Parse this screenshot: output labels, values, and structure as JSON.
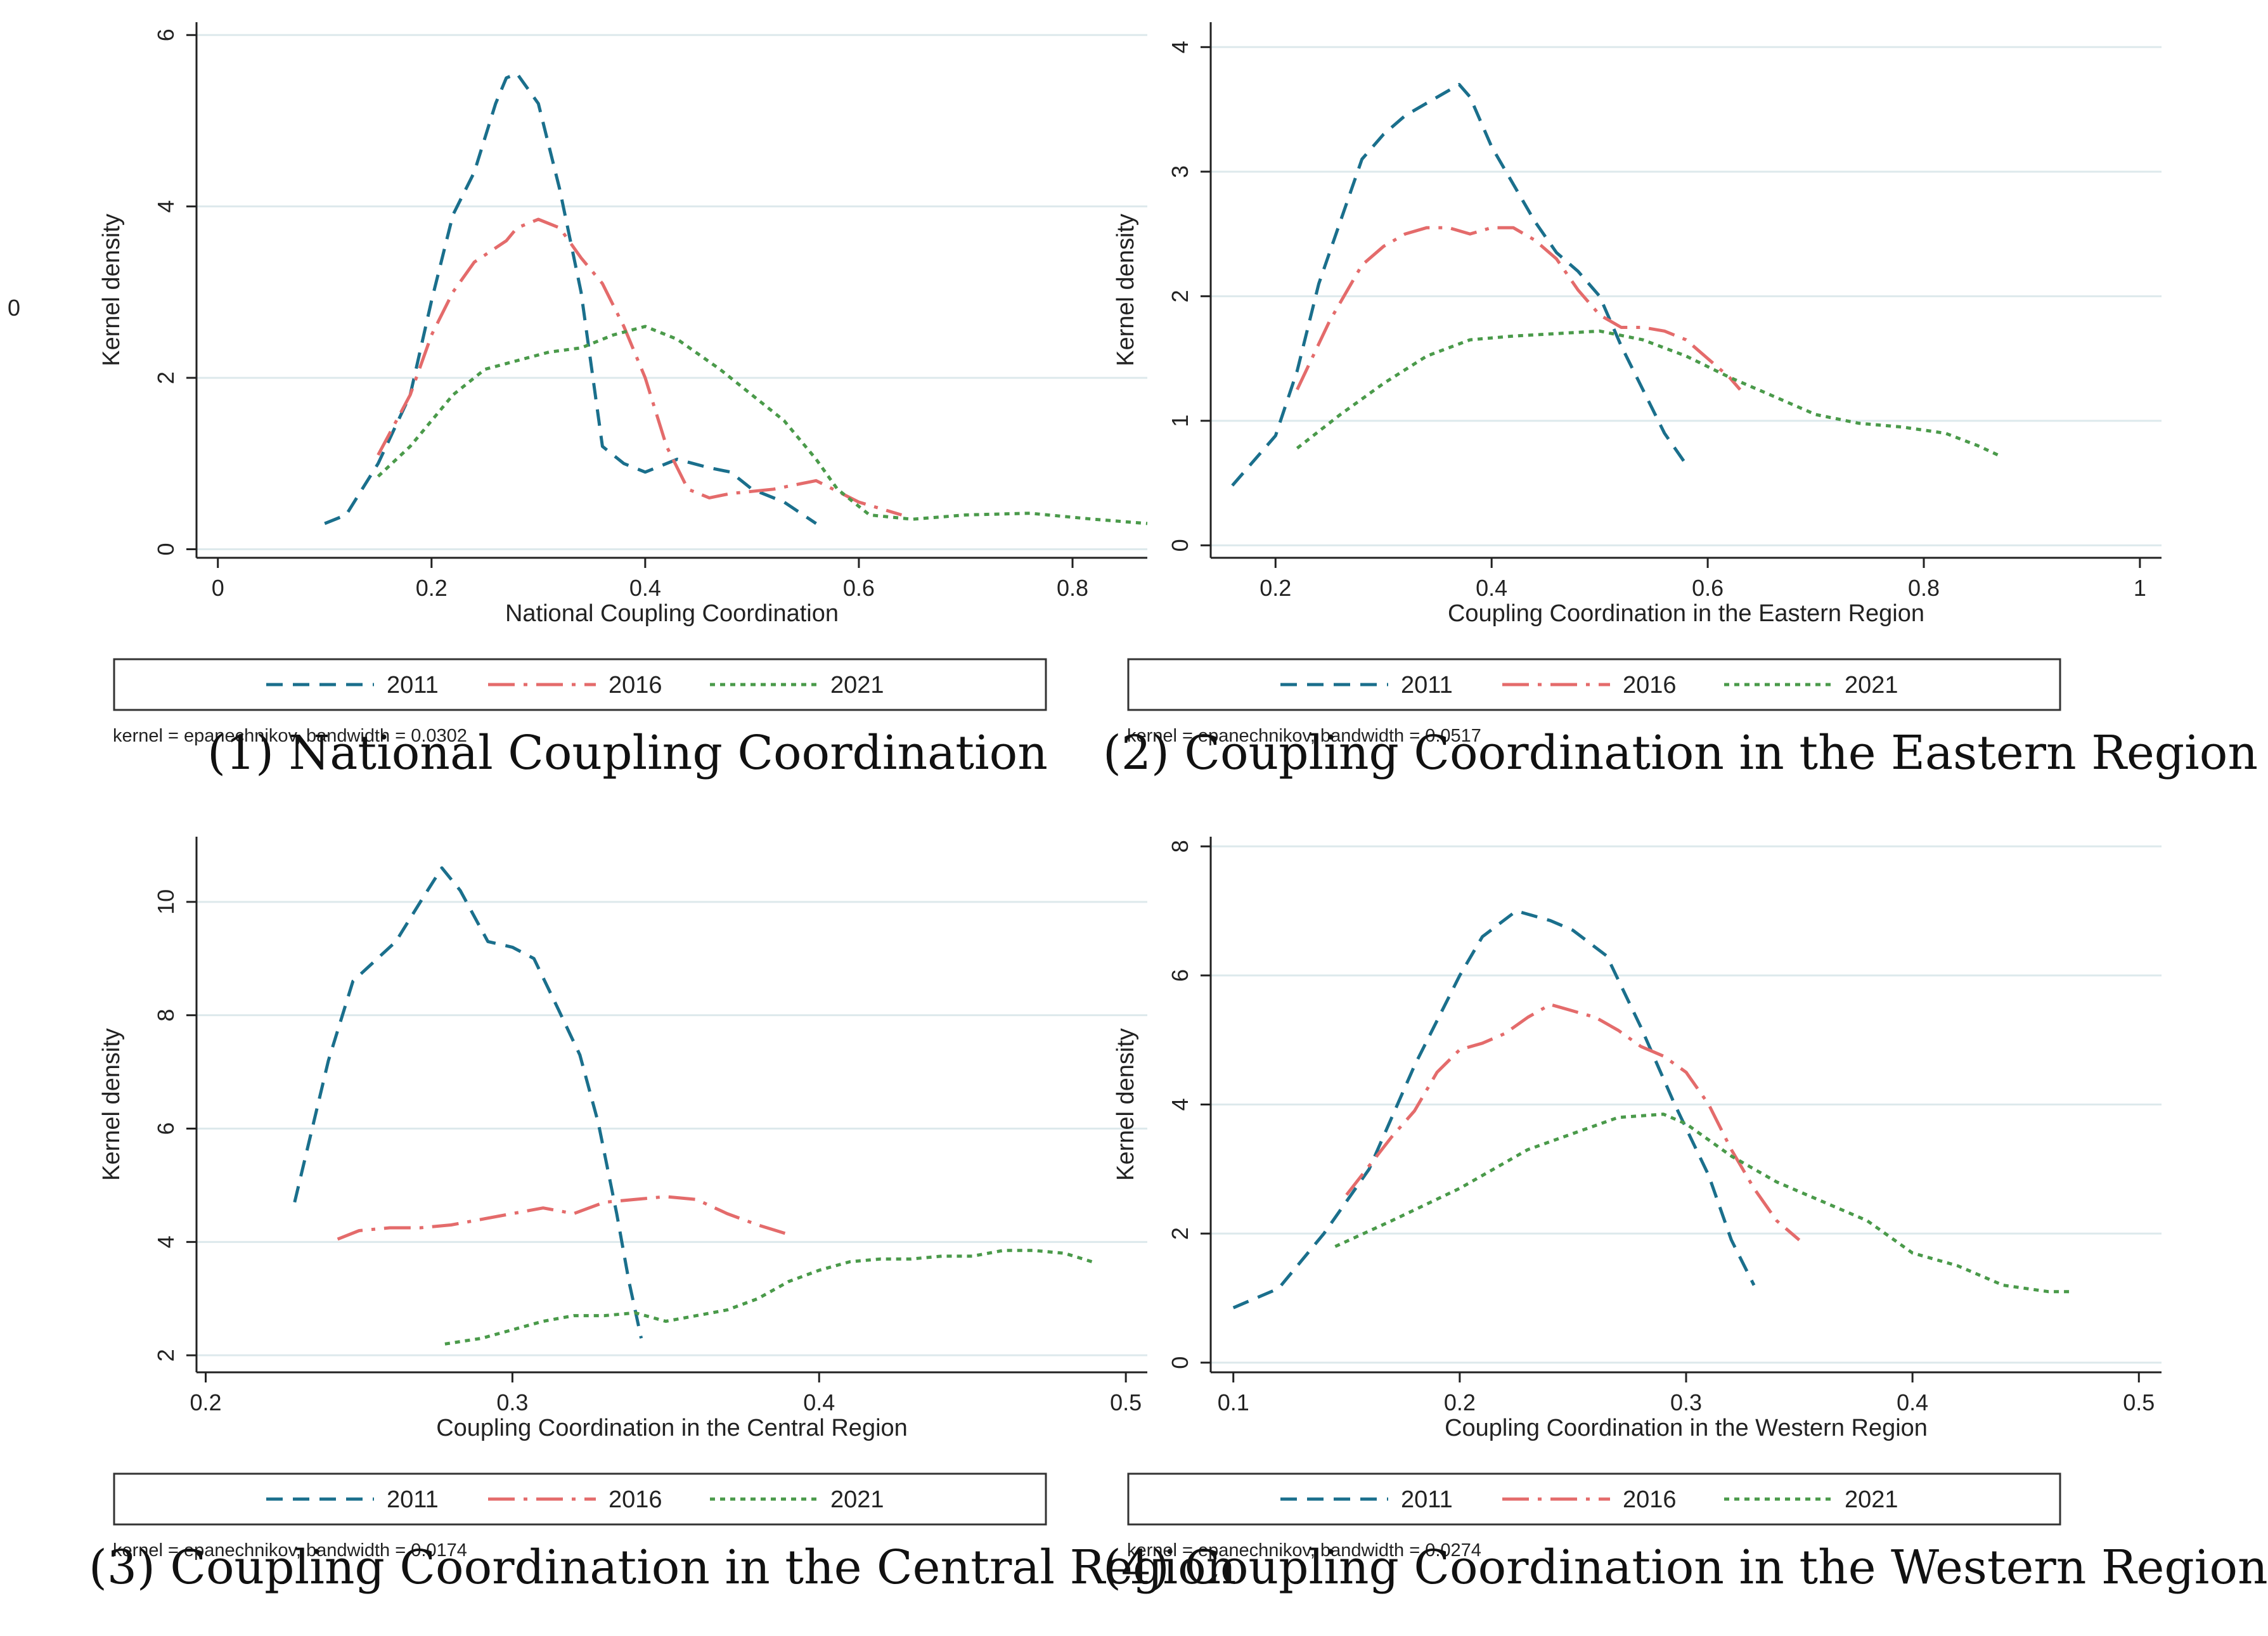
{
  "stray_label": "0",
  "legend": {
    "labels": [
      "2011",
      "2016",
      "2021"
    ]
  },
  "series_colors": {
    "2011": "#1a6f8c",
    "2016": "#e46b6b",
    "2021": "#4a9a4a"
  },
  "chart_data": [
    {
      "type": "line",
      "caption": "(1) National Coupling Coordination",
      "xlabel": "National Coupling Coordination",
      "ylabel": "Kernel density",
      "xlim": [
        -0.02,
        0.87
      ],
      "ylim": [
        -0.1,
        6.15
      ],
      "xticks": [
        0,
        0.2,
        0.4,
        0.6,
        0.8
      ],
      "yticks": [
        0,
        2,
        4,
        6
      ],
      "xtick_labels": [
        "0",
        "0.2",
        "0.4",
        "0.6",
        "0.8"
      ],
      "ytick_labels": [
        "0",
        "2",
        "4",
        "6"
      ],
      "grid": true,
      "note": "kernel = epanechnikov, bandwidth = 0.0302",
      "series": [
        {
          "name": "2011",
          "x": [
            0.1,
            0.12,
            0.15,
            0.18,
            0.2,
            0.22,
            0.24,
            0.26,
            0.27,
            0.28,
            0.3,
            0.32,
            0.34,
            0.36,
            0.38,
            0.4,
            0.43,
            0.46,
            0.48,
            0.5,
            0.53,
            0.56
          ],
          "y": [
            0.3,
            0.4,
            1.0,
            1.8,
            2.9,
            3.9,
            4.4,
            5.2,
            5.5,
            5.55,
            5.2,
            4.2,
            3.0,
            1.2,
            1.0,
            0.9,
            1.05,
            0.95,
            0.9,
            0.7,
            0.55,
            0.3
          ]
        },
        {
          "name": "2016",
          "x": [
            0.15,
            0.18,
            0.2,
            0.22,
            0.24,
            0.27,
            0.28,
            0.3,
            0.32,
            0.34,
            0.36,
            0.38,
            0.4,
            0.42,
            0.44,
            0.46,
            0.48,
            0.52,
            0.56,
            0.6,
            0.64
          ],
          "y": [
            1.1,
            1.8,
            2.5,
            3.0,
            3.35,
            3.6,
            3.75,
            3.85,
            3.75,
            3.4,
            3.1,
            2.6,
            2.0,
            1.2,
            0.7,
            0.6,
            0.65,
            0.7,
            0.8,
            0.55,
            0.4
          ]
        },
        {
          "name": "2021",
          "x": [
            0.15,
            0.18,
            0.2,
            0.22,
            0.25,
            0.28,
            0.31,
            0.34,
            0.37,
            0.4,
            0.43,
            0.47,
            0.5,
            0.53,
            0.56,
            0.58,
            0.61,
            0.65,
            0.7,
            0.76,
            0.82,
            0.87
          ],
          "y": [
            0.85,
            1.2,
            1.5,
            1.8,
            2.1,
            2.2,
            2.3,
            2.35,
            2.5,
            2.6,
            2.45,
            2.1,
            1.8,
            1.5,
            1.05,
            0.7,
            0.4,
            0.35,
            0.4,
            0.42,
            0.35,
            0.3
          ]
        }
      ]
    },
    {
      "type": "line",
      "caption": "(2) Coupling Coordination in the Eastern Region",
      "xlabel": "Coupling Coordination in the Eastern Region",
      "ylabel": "Kernel density",
      "xlim": [
        0.14,
        1.02
      ],
      "ylim": [
        -0.1,
        4.2
      ],
      "xticks": [
        0.2,
        0.4,
        0.6,
        0.8,
        1
      ],
      "yticks": [
        0,
        1,
        2,
        3,
        4
      ],
      "xtick_labels": [
        "0.2",
        "0.4",
        "0.6",
        "0.8",
        "1"
      ],
      "ytick_labels": [
        "0",
        "1",
        "2",
        "3",
        "4"
      ],
      "grid": true,
      "note": "kernel = epanechnikov, bandwidth = 0.0517",
      "series": [
        {
          "name": "2011",
          "x": [
            0.16,
            0.2,
            0.22,
            0.24,
            0.26,
            0.28,
            0.3,
            0.32,
            0.34,
            0.36,
            0.37,
            0.38,
            0.4,
            0.42,
            0.44,
            0.46,
            0.48,
            0.5,
            0.52,
            0.54,
            0.56,
            0.58
          ],
          "y": [
            0.48,
            0.88,
            1.4,
            2.1,
            2.6,
            3.1,
            3.3,
            3.45,
            3.55,
            3.65,
            3.7,
            3.6,
            3.2,
            2.9,
            2.6,
            2.35,
            2.2,
            2.0,
            1.6,
            1.25,
            0.9,
            0.65
          ]
        },
        {
          "name": "2016",
          "x": [
            0.22,
            0.25,
            0.28,
            0.3,
            0.32,
            0.34,
            0.36,
            0.38,
            0.4,
            0.42,
            0.44,
            0.46,
            0.48,
            0.5,
            0.52,
            0.54,
            0.56,
            0.58,
            0.6,
            0.62,
            0.63
          ],
          "y": [
            1.25,
            1.8,
            2.25,
            2.4,
            2.5,
            2.55,
            2.55,
            2.5,
            2.55,
            2.55,
            2.45,
            2.3,
            2.05,
            1.85,
            1.75,
            1.75,
            1.72,
            1.65,
            1.5,
            1.35,
            1.25
          ]
        },
        {
          "name": "2021",
          "x": [
            0.22,
            0.26,
            0.3,
            0.34,
            0.38,
            0.42,
            0.46,
            0.5,
            0.54,
            0.58,
            0.62,
            0.66,
            0.7,
            0.74,
            0.78,
            0.82,
            0.85,
            0.87
          ],
          "y": [
            0.78,
            1.05,
            1.3,
            1.52,
            1.65,
            1.68,
            1.7,
            1.72,
            1.65,
            1.52,
            1.35,
            1.2,
            1.05,
            0.98,
            0.95,
            0.9,
            0.8,
            0.72
          ]
        }
      ]
    },
    {
      "type": "line",
      "caption": "(3) Coupling Coordination in the Central Region",
      "xlabel": "Coupling Coordination in the Central Region",
      "ylabel": "Kernel density",
      "xlim": [
        0.197,
        0.507
      ],
      "ylim": [
        1.7,
        11.15
      ],
      "xticks": [
        0.2,
        0.3,
        0.4,
        0.5
      ],
      "yticks": [
        2,
        4,
        6,
        8,
        10
      ],
      "xtick_labels": [
        "0.2",
        "0.3",
        "0.4",
        "0.5"
      ],
      "ytick_labels": [
        "2",
        "4",
        "6",
        "8",
        "10"
      ],
      "grid": true,
      "note": "kernel = epanechnikov, bandwidth = 0.0174",
      "series": [
        {
          "name": "2011",
          "x": [
            0.229,
            0.24,
            0.248,
            0.262,
            0.27,
            0.277,
            0.283,
            0.292,
            0.3,
            0.307,
            0.315,
            0.322,
            0.328,
            0.334,
            0.338,
            0.342
          ],
          "y": [
            4.7,
            7.2,
            8.6,
            9.3,
            10.0,
            10.6,
            10.2,
            9.3,
            9.2,
            9.0,
            8.1,
            7.3,
            6.1,
            4.5,
            3.3,
            2.3
          ]
        },
        {
          "name": "2016",
          "x": [
            0.243,
            0.25,
            0.26,
            0.27,
            0.28,
            0.29,
            0.3,
            0.31,
            0.32,
            0.33,
            0.34,
            0.35,
            0.36,
            0.37,
            0.38,
            0.389
          ],
          "y": [
            4.05,
            4.2,
            4.25,
            4.25,
            4.3,
            4.4,
            4.5,
            4.6,
            4.5,
            4.7,
            4.75,
            4.8,
            4.75,
            4.5,
            4.3,
            4.15
          ]
        },
        {
          "name": "2021",
          "x": [
            0.278,
            0.29,
            0.3,
            0.31,
            0.32,
            0.33,
            0.34,
            0.35,
            0.36,
            0.37,
            0.38,
            0.39,
            0.4,
            0.41,
            0.42,
            0.43,
            0.44,
            0.45,
            0.46,
            0.47,
            0.48,
            0.489
          ],
          "y": [
            2.2,
            2.3,
            2.45,
            2.6,
            2.7,
            2.7,
            2.75,
            2.6,
            2.7,
            2.8,
            3.0,
            3.3,
            3.5,
            3.65,
            3.7,
            3.7,
            3.75,
            3.75,
            3.85,
            3.85,
            3.8,
            3.65
          ]
        }
      ]
    },
    {
      "type": "line",
      "caption": "(4) Coupling Coordination in the Western Region",
      "xlabel": "Coupling Coordination in the Western Region",
      "ylabel": "Kernel density",
      "xlim": [
        0.09,
        0.51
      ],
      "ylim": [
        -0.15,
        8.15
      ],
      "xticks": [
        0.1,
        0.2,
        0.3,
        0.4,
        0.5
      ],
      "yticks": [
        0,
        2,
        4,
        6,
        8
      ],
      "xtick_labels": [
        "0.1",
        "0.2",
        "0.3",
        "0.4",
        "0.5"
      ],
      "ytick_labels": [
        "0",
        "2",
        "4",
        "6",
        "8"
      ],
      "grid": true,
      "note": "kernel = epanechnikov, bandwidth = 0.0274",
      "series": [
        {
          "name": "2011",
          "x": [
            0.1,
            0.12,
            0.14,
            0.16,
            0.18,
            0.2,
            0.21,
            0.225,
            0.24,
            0.25,
            0.265,
            0.28,
            0.295,
            0.31,
            0.32,
            0.33
          ],
          "y": [
            0.85,
            1.15,
            2.0,
            3.0,
            4.6,
            6.0,
            6.6,
            7.0,
            6.85,
            6.7,
            6.3,
            5.2,
            4.0,
            2.9,
            1.9,
            1.2
          ]
        },
        {
          "name": "2016",
          "x": [
            0.15,
            0.17,
            0.18,
            0.19,
            0.2,
            0.21,
            0.22,
            0.23,
            0.24,
            0.25,
            0.26,
            0.27,
            0.28,
            0.29,
            0.3,
            0.31,
            0.32,
            0.33,
            0.34,
            0.35
          ],
          "y": [
            2.6,
            3.5,
            3.9,
            4.5,
            4.85,
            4.95,
            5.1,
            5.35,
            5.55,
            5.45,
            5.35,
            5.15,
            4.9,
            4.75,
            4.5,
            4.0,
            3.3,
            2.7,
            2.2,
            1.9
          ]
        },
        {
          "name": "2021",
          "x": [
            0.145,
            0.17,
            0.2,
            0.23,
            0.25,
            0.27,
            0.29,
            0.3,
            0.32,
            0.34,
            0.36,
            0.38,
            0.4,
            0.42,
            0.44,
            0.46,
            0.47
          ],
          "y": [
            1.8,
            2.2,
            2.7,
            3.3,
            3.55,
            3.8,
            3.85,
            3.7,
            3.2,
            2.8,
            2.5,
            2.2,
            1.7,
            1.5,
            1.2,
            1.1,
            1.1
          ]
        }
      ]
    }
  ]
}
